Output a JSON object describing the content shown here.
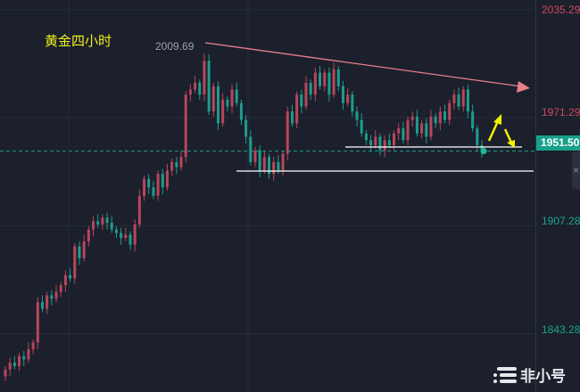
{
  "chart_data": {
    "type": "candlestick",
    "title": "黄金四小时",
    "y_axis": {
      "ticks": [
        "2035.29",
        "1971.29",
        "1907.28",
        "1843.28"
      ],
      "tick_values": [
        2035.29,
        1971.29,
        1907.28,
        1843.28
      ],
      "range": [
        1812,
        2040
      ],
      "position": "right"
    },
    "last_price": "1951.50",
    "high_label": "2009.69",
    "closes": [
      1822,
      1826,
      1824,
      1830,
      1828,
      1834,
      1838,
      1862,
      1858,
      1866,
      1864,
      1868,
      1872,
      1878,
      1876,
      1895,
      1888,
      1898,
      1905,
      1910,
      1908,
      1912,
      1909,
      1905,
      1903,
      1900,
      1902,
      1896,
      1908,
      1925,
      1935,
      1930,
      1925,
      1938,
      1930,
      1940,
      1945,
      1942,
      1948,
      1985,
      1988,
      1992,
      1985,
      2005,
      1975,
      1990,
      1968,
      1982,
      1978,
      1988,
      1980,
      1970,
      1960,
      1945,
      1952,
      1940,
      1948,
      1938,
      1945,
      1940,
      1950,
      1975,
      1968,
      1985,
      1978,
      1992,
      1985,
      1998,
      1990,
      1998,
      1985,
      2000,
      1990,
      1980,
      1985,
      1975,
      1970,
      1962,
      1958,
      1955,
      1960,
      1952,
      1958,
      1955,
      1962,
      1965,
      1958,
      1970,
      1972,
      1962,
      1968,
      1960,
      1972,
      1968,
      1975,
      1970,
      1980,
      1985,
      1978,
      1988,
      1975,
      1965,
      1955,
      1951.5
    ],
    "first_open": 1818,
    "annotations": {
      "trendline": {
        "from_price": 2009.69,
        "to_price": 1983,
        "color": "#e8808a"
      },
      "support_lines": [
        1937,
        1951
      ],
      "arrows": [
        "up",
        "down"
      ],
      "arrow_color": "#f5f000"
    },
    "colors": {
      "up": "#b8465c",
      "down": "#1e9c8c",
      "background": "#1b202c",
      "axis_up_label": "#d0475f",
      "axis_down_label": "#1aa58c"
    },
    "grid": true
  },
  "side_button": {
    "label": "×"
  },
  "logo": {
    "text": "非小号"
  }
}
